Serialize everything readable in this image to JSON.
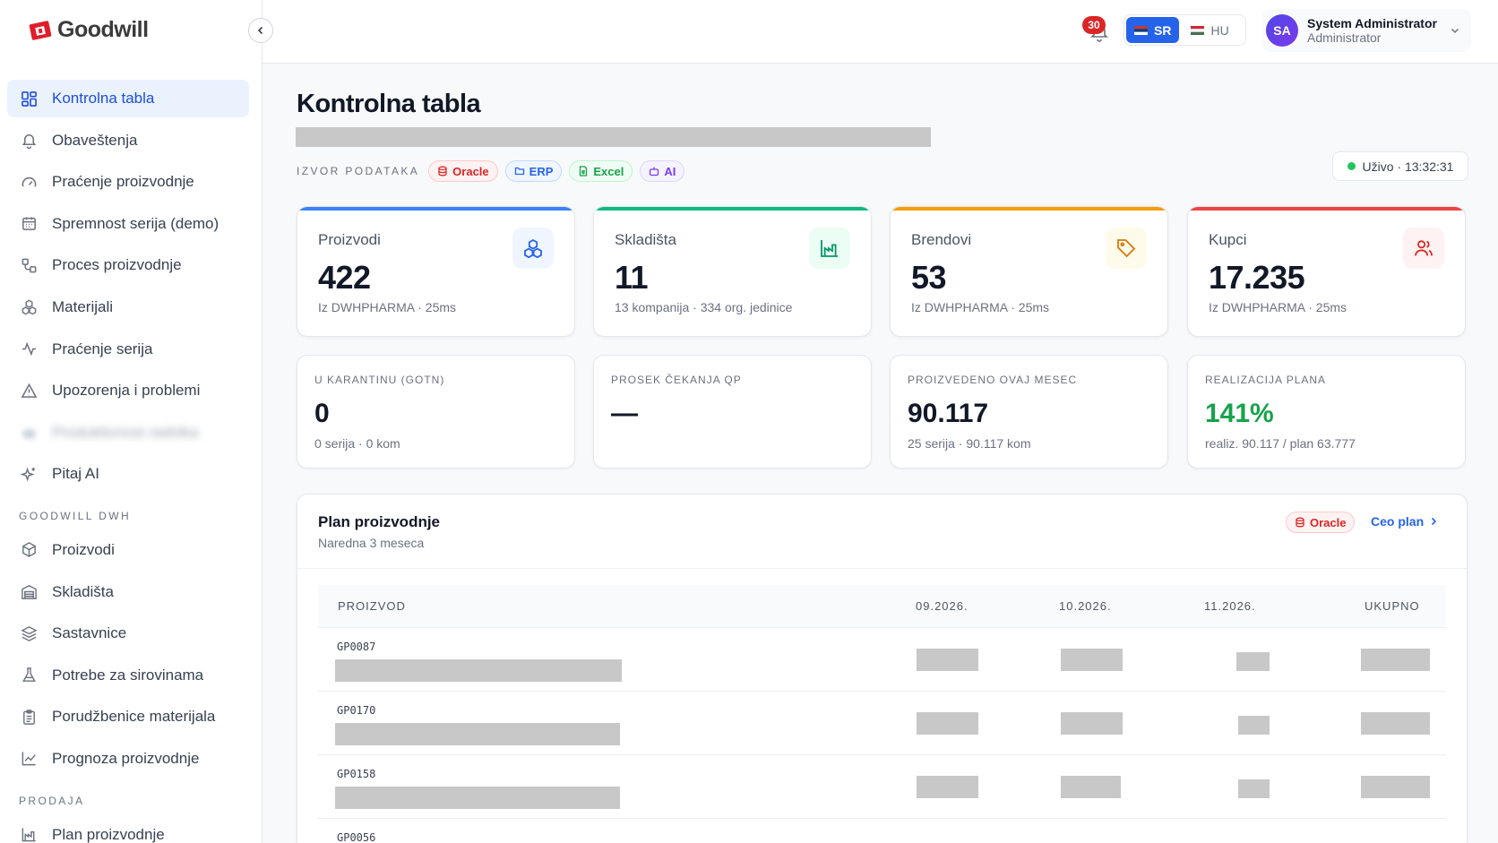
{
  "app": {
    "brand": "Goodwill"
  },
  "sidebar": {
    "items": [
      {
        "label": "Kontrolna tabla",
        "icon": "dashboard-icon",
        "active": true
      },
      {
        "label": "Obaveštenja",
        "icon": "bell-icon"
      },
      {
        "label": "Praćenje proizvodnje",
        "icon": "gauge-icon"
      },
      {
        "label": "Spremnost serija (demo)",
        "icon": "calendar-icon"
      },
      {
        "label": "Proces proizvodnje",
        "icon": "workflow-icon"
      },
      {
        "label": "Materijali",
        "icon": "boxes-icon"
      },
      {
        "label": "Praćenje serija",
        "icon": "activity-icon"
      },
      {
        "label": "Upozorenja i problemi",
        "icon": "warning-icon"
      },
      {
        "label": "Produktivnost radnika",
        "icon": "users-icon",
        "blurred": true
      },
      {
        "label": "Pitaj AI",
        "icon": "sparkles-icon"
      }
    ],
    "section_dwh": "GOODWILL DWH",
    "dwh_items": [
      {
        "label": "Proizvodi",
        "icon": "package-icon"
      },
      {
        "label": "Skladišta",
        "icon": "warehouse-icon"
      },
      {
        "label": "Sastavnice",
        "icon": "layers-icon"
      },
      {
        "label": "Potrebe za sirovinama",
        "icon": "flask-icon"
      },
      {
        "label": "Porudžbenice materijala",
        "icon": "clipboard-icon"
      },
      {
        "label": "Prognoza proizvodnje",
        "icon": "chart-line-icon"
      }
    ],
    "section_sales": "PRODAJA",
    "sales_items": [
      {
        "label": "Plan proizvodnje",
        "icon": "factory-icon"
      }
    ]
  },
  "header": {
    "notifications_count": "30",
    "languages": [
      {
        "code": "SR",
        "active": true
      },
      {
        "code": "HU",
        "active": false
      }
    ],
    "user": {
      "initials": "SA",
      "name": "System Administrator",
      "role": "Administrator"
    }
  },
  "main": {
    "title": "Kontrolna tabla",
    "sources_label": "IZVOR PODATAKA",
    "sources": [
      "Oracle",
      "ERP",
      "Excel",
      "AI"
    ],
    "live_label": "Uživo · 13:32:31",
    "stats": [
      {
        "label": "Proizvodi",
        "value": "422",
        "sub": "Iz DWHPHARMA · 25ms",
        "accent": "#3b82f6",
        "icon": "boxes-icon"
      },
      {
        "label": "Skladišta",
        "value": "11",
        "sub": "13 kompanija · 334 org. jedinice",
        "accent": "#10b981",
        "icon": "factory-icon"
      },
      {
        "label": "Brendovi",
        "value": "53",
        "sub": "Iz DWHPHARMA · 25ms",
        "accent": "#f59e0b",
        "icon": "tag-icon"
      },
      {
        "label": "Kupci",
        "value": "17.235",
        "sub": "Iz DWHPHARMA · 25ms",
        "accent": "#ef4444",
        "icon": "users-icon"
      }
    ],
    "kpis": [
      {
        "label": "U KARANTINU (GOTN)",
        "value": "0",
        "sub": "0 serija · 0 kom"
      },
      {
        "label": "PROSEK ČEKANJA QP",
        "value": "—",
        "sub": ""
      },
      {
        "label": "PROIZVEDENO OVAJ MESEC",
        "value": "90.117",
        "sub": "25 serija · 90.117 kom"
      },
      {
        "label": "REALIZACIJA PLANA",
        "value": "141%",
        "sub": "realiz. 90.117 / plan 63.777"
      }
    ],
    "plan": {
      "title": "Plan proizvodnje",
      "subtitle": "Naredna 3 meseca",
      "source": "Oracle",
      "link": "Ceo plan",
      "columns": [
        "PROIZVOD",
        "09.2026.",
        "10.2026.",
        "11.2026.",
        "UKUPNO"
      ],
      "rows": [
        {
          "code": "GP0087"
        },
        {
          "code": "GP0170"
        },
        {
          "code": "GP0158"
        },
        {
          "code": "GP0056"
        }
      ]
    }
  },
  "colors": {
    "primary": "#2563eb",
    "green": "#16a34a",
    "oracle_red": "#dc2626"
  }
}
